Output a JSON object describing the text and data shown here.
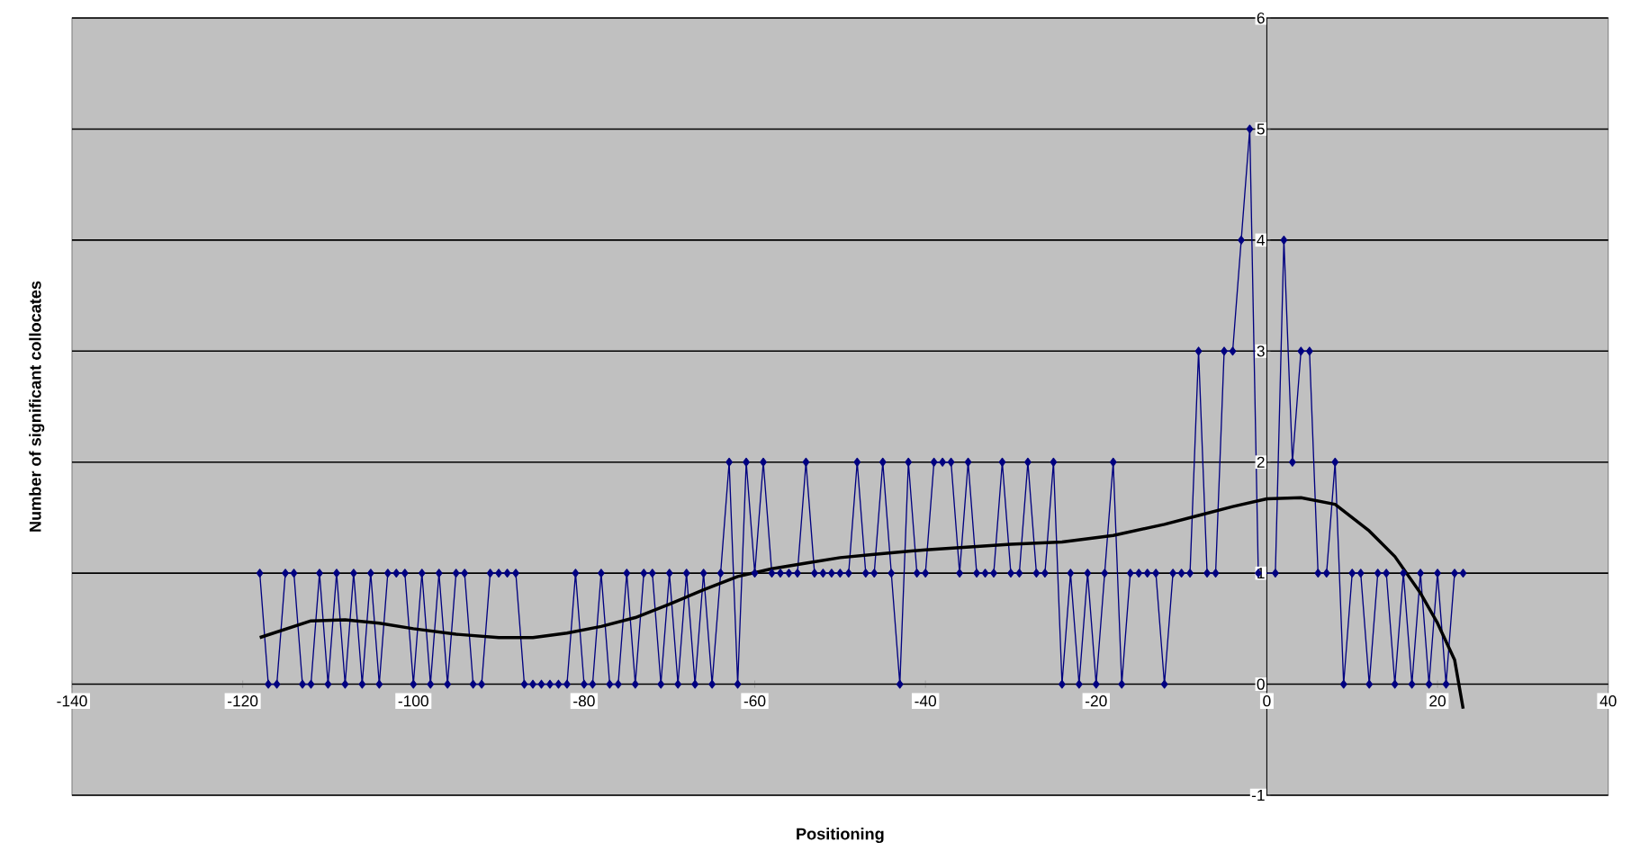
{
  "chart_data": {
    "type": "line",
    "xlabel": "Positioning",
    "ylabel": "Number of significant collocates",
    "xlim": [
      -140,
      40
    ],
    "ylim": [
      -1,
      6
    ],
    "xticks": [
      -140,
      -120,
      -100,
      -80,
      -60,
      -40,
      -20,
      0,
      20,
      40
    ],
    "yticks": [
      -1,
      0,
      1,
      2,
      3,
      4,
      5,
      6
    ],
    "grid": "y",
    "line_style": "solid",
    "series": [
      {
        "color": "#000080",
        "marker": "diamond",
        "x": [
          -118,
          -117,
          -116,
          -115,
          -114,
          -113,
          -112,
          -111,
          -110,
          -109,
          -108,
          -107,
          -106,
          -105,
          -104,
          -103,
          -102,
          -101,
          -100,
          -99,
          -98,
          -97,
          -96,
          -95,
          -94,
          -93,
          -92,
          -91,
          -90,
          -89,
          -88,
          -87,
          -86,
          -85,
          -84,
          -83,
          -82,
          -81,
          -80,
          -79,
          -78,
          -77,
          -76,
          -75,
          -74,
          -73,
          -72,
          -71,
          -70,
          -69,
          -68,
          -67,
          -66,
          -65,
          -64,
          -63,
          -62,
          -61,
          -60,
          -59,
          -58,
          -57,
          -56,
          -55,
          -54,
          -53,
          -52,
          -51,
          -50,
          -49,
          -48,
          -47,
          -46,
          -45,
          -44,
          -43,
          -42,
          -41,
          -40,
          -39,
          -38,
          -37,
          -36,
          -35,
          -34,
          -33,
          -32,
          -31,
          -30,
          -29,
          -28,
          -27,
          -26,
          -25,
          -24,
          -23,
          -22,
          -21,
          -20,
          -19,
          -18,
          -17,
          -16,
          -15,
          -14,
          -13,
          -12,
          -11,
          -10,
          -9,
          -8,
          -7,
          -6,
          -5,
          -4,
          -3,
          -2,
          -1,
          1,
          2,
          3,
          4,
          5,
          6,
          7,
          8,
          9,
          10,
          11,
          12,
          13,
          14,
          15,
          16,
          17,
          18,
          19,
          20,
          21,
          22,
          23
        ],
        "values": [
          1,
          0,
          0,
          1,
          1,
          0,
          0,
          1,
          0,
          1,
          0,
          1,
          0,
          1,
          0,
          1,
          1,
          1,
          0,
          1,
          0,
          1,
          0,
          1,
          1,
          0,
          0,
          1,
          1,
          1,
          1,
          0,
          0,
          0,
          0,
          0,
          0,
          1,
          0,
          0,
          1,
          0,
          0,
          1,
          0,
          1,
          1,
          0,
          1,
          0,
          1,
          0,
          1,
          0,
          1,
          2,
          0,
          2,
          1,
          2,
          1,
          1,
          1,
          1,
          2,
          1,
          1,
          1,
          1,
          1,
          2,
          1,
          1,
          2,
          1,
          0,
          2,
          1,
          1,
          2,
          2,
          2,
          1,
          2,
          1,
          1,
          1,
          2,
          1,
          1,
          2,
          1,
          1,
          2,
          0,
          1,
          0,
          1,
          0,
          1,
          2,
          0,
          1,
          1,
          1,
          1,
          0,
          1,
          1,
          1,
          3,
          1,
          1,
          3,
          3,
          4,
          5,
          1,
          1,
          4,
          2,
          3,
          3,
          1,
          1,
          2,
          0,
          1,
          1,
          0,
          1,
          1,
          0,
          1,
          0,
          1,
          0,
          1,
          0,
          1,
          1
        ]
      },
      {
        "type": "line",
        "color": "#000000",
        "marker": "none",
        "x": [
          -118,
          -112,
          -108,
          -104,
          -100,
          -95,
          -90,
          -86,
          -82,
          -78,
          -74,
          -70,
          -66,
          -62,
          -58,
          -54,
          -50,
          -46,
          -40,
          -30,
          -24,
          -18,
          -12,
          -8,
          -4,
          0,
          4,
          8,
          12,
          15,
          18,
          20,
          22,
          23
        ],
        "values": [
          0.42,
          0.57,
          0.58,
          0.55,
          0.5,
          0.45,
          0.42,
          0.42,
          0.46,
          0.52,
          0.6,
          0.72,
          0.85,
          0.97,
          1.04,
          1.09,
          1.14,
          1.17,
          1.21,
          1.26,
          1.28,
          1.34,
          1.44,
          1.52,
          1.6,
          1.67,
          1.68,
          1.62,
          1.38,
          1.15,
          0.82,
          0.55,
          0.22,
          -0.22
        ]
      }
    ]
  }
}
